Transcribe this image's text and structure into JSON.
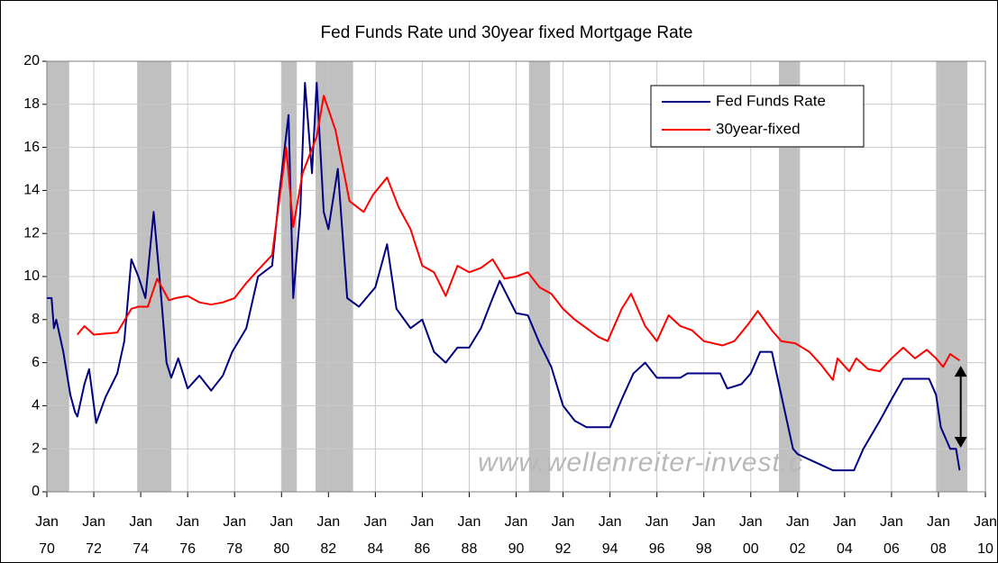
{
  "chart_data": {
    "type": "line",
    "title": "Fed Funds Rate und 30year fixed Mortgage Rate",
    "watermark": "www.wellenreiter-invest.c",
    "xlim": [
      1970,
      2010
    ],
    "ylim": [
      0,
      20
    ],
    "yticks": [
      0,
      2,
      4,
      6,
      8,
      10,
      12,
      14,
      16,
      18,
      20
    ],
    "xticks": [
      {
        "value": 1970,
        "label": "Jan 70"
      },
      {
        "value": 1972,
        "label": "Jan 72"
      },
      {
        "value": 1974,
        "label": "Jan 74"
      },
      {
        "value": 1976,
        "label": "Jan 76"
      },
      {
        "value": 1978,
        "label": "Jan 78"
      },
      {
        "value": 1980,
        "label": "Jan 80"
      },
      {
        "value": 1982,
        "label": "Jan 82"
      },
      {
        "value": 1984,
        "label": "Jan 84"
      },
      {
        "value": 1986,
        "label": "Jan 86"
      },
      {
        "value": 1988,
        "label": "Jan 88"
      },
      {
        "value": 1990,
        "label": "Jan 90"
      },
      {
        "value": 1992,
        "label": "Jan 92"
      },
      {
        "value": 1994,
        "label": "Jan 94"
      },
      {
        "value": 1996,
        "label": "Jan 96"
      },
      {
        "value": 1998,
        "label": "Jan 98"
      },
      {
        "value": 2000,
        "label": "Jan 00"
      },
      {
        "value": 2002,
        "label": "Jan 02"
      },
      {
        "value": 2004,
        "label": "Jan 04"
      },
      {
        "value": 2006,
        "label": "Jan 06"
      },
      {
        "value": 2008,
        "label": "Jan 08"
      },
      {
        "value": 2010,
        "label": "Jan 10"
      }
    ],
    "grid": true,
    "legend": "upper right",
    "shaded_ranges": [
      [
        1970,
        1970.95
      ],
      [
        1973.85,
        1975.3
      ],
      [
        1980,
        1980.65
      ],
      [
        1981.45,
        1983.05
      ],
      [
        1990.55,
        1991.45
      ],
      [
        2001.2,
        2002.1
      ],
      [
        2007.9,
        2009.4
      ]
    ],
    "shade_color": "#c0c0c0",
    "arrow": {
      "x": 2008.95,
      "from": 5.85,
      "to": 2.05,
      "color": "#000000"
    },
    "series": [
      {
        "name": "Fed Funds Rate",
        "color": "#000080",
        "x": [
          1970.0,
          1970.2,
          1970.3,
          1970.4,
          1970.7,
          1971.0,
          1971.2,
          1971.3,
          1971.6,
          1971.8,
          1972.1,
          1972.5,
          1973.0,
          1973.3,
          1973.6,
          1973.9,
          1974.2,
          1974.55,
          1974.8,
          1975.1,
          1975.3,
          1975.6,
          1976.0,
          1976.5,
          1977.0,
          1977.5,
          1977.9,
          1978.5,
          1979.0,
          1979.6,
          1979.9,
          1980.3,
          1980.5,
          1980.8,
          1981.0,
          1981.3,
          1981.5,
          1981.8,
          1982.0,
          1982.4,
          1982.8,
          1983.3,
          1984.0,
          1984.5,
          1984.9,
          1985.5,
          1986.0,
          1986.5,
          1987.0,
          1987.5,
          1988.0,
          1988.5,
          1989.0,
          1989.3,
          1990.0,
          1990.5,
          1991.0,
          1991.5,
          1992.0,
          1992.5,
          1993.0,
          1994.0,
          1994.5,
          1995.0,
          1995.5,
          1996.0,
          1997.0,
          1997.3,
          1998.7,
          1999.0,
          1999.6,
          2000.0,
          2000.4,
          2000.9,
          2001.3,
          2001.8,
          2002.0,
          2002.9,
          2003.5,
          2004.4,
          2004.8,
          2005.5,
          2006.0,
          2006.5,
          2007.6,
          2007.9,
          2008.1,
          2008.5,
          2008.75,
          2008.9
        ],
        "values": [
          9.0,
          9.0,
          7.6,
          8.0,
          6.5,
          4.5,
          3.7,
          3.5,
          5.0,
          5.7,
          3.2,
          4.4,
          5.5,
          7.0,
          10.8,
          10.0,
          9.0,
          13.0,
          10.0,
          6.0,
          5.3,
          6.2,
          4.8,
          5.4,
          4.7,
          5.4,
          6.5,
          7.6,
          10.0,
          10.5,
          13.8,
          17.5,
          9.0,
          13.0,
          19.0,
          14.8,
          19.0,
          13.0,
          12.2,
          15.0,
          9.0,
          8.6,
          9.5,
          11.5,
          8.5,
          7.6,
          8.0,
          6.5,
          6.0,
          6.7,
          6.7,
          7.6,
          9.0,
          9.8,
          8.3,
          8.2,
          6.9,
          5.8,
          4.0,
          3.3,
          3.0,
          3.0,
          4.3,
          5.5,
          6.0,
          5.3,
          5.3,
          5.5,
          5.5,
          4.8,
          5.0,
          5.5,
          6.5,
          6.5,
          4.5,
          2.0,
          1.75,
          1.3,
          1.0,
          1.0,
          2.0,
          3.3,
          4.3,
          5.25,
          5.25,
          4.5,
          3.0,
          2.0,
          2.0,
          1.0
        ]
      },
      {
        "name": "30year-fixed",
        "color": "#ff0000",
        "x": [
          1971.3,
          1971.6,
          1972.0,
          1973.0,
          1973.6,
          1973.9,
          1974.3,
          1974.7,
          1975.2,
          1975.5,
          1976.0,
          1976.5,
          1977.0,
          1977.5,
          1978.0,
          1978.5,
          1979.0,
          1979.6,
          1980.2,
          1980.5,
          1980.9,
          1981.5,
          1981.8,
          1982.3,
          1982.9,
          1983.5,
          1983.9,
          1984.5,
          1985.0,
          1985.5,
          1986.0,
          1986.5,
          1987.0,
          1987.5,
          1988.0,
          1988.5,
          1989.0,
          1989.5,
          1990.0,
          1990.5,
          1991.0,
          1991.5,
          1992.0,
          1992.5,
          1993.0,
          1993.5,
          1993.9,
          1994.5,
          1994.9,
          1995.5,
          1996.0,
          1996.5,
          1997.0,
          1997.5,
          1998.0,
          1998.8,
          1999.3,
          1999.9,
          2000.3,
          2000.9,
          2001.3,
          2001.9,
          2002.5,
          2003.0,
          2003.5,
          2003.7,
          2004.2,
          2004.5,
          2005.0,
          2005.5,
          2006.0,
          2006.5,
          2007.0,
          2007.5,
          2007.9,
          2008.2,
          2008.5,
          2008.9
        ],
        "values": [
          7.3,
          7.7,
          7.3,
          7.4,
          8.5,
          8.6,
          8.6,
          9.9,
          8.9,
          9.0,
          9.1,
          8.8,
          8.7,
          8.8,
          9.0,
          9.7,
          10.3,
          11.0,
          16.0,
          12.3,
          14.8,
          16.5,
          18.4,
          16.8,
          13.5,
          13.0,
          13.8,
          14.6,
          13.2,
          12.2,
          10.5,
          10.2,
          9.1,
          10.5,
          10.2,
          10.4,
          10.8,
          9.9,
          10.0,
          10.2,
          9.5,
          9.2,
          8.5,
          8.0,
          7.6,
          7.2,
          7.0,
          8.5,
          9.2,
          7.7,
          7.0,
          8.2,
          7.7,
          7.5,
          7.0,
          6.8,
          7.0,
          7.8,
          8.4,
          7.5,
          7.0,
          6.9,
          6.5,
          5.9,
          5.2,
          6.2,
          5.6,
          6.2,
          5.7,
          5.6,
          6.2,
          6.7,
          6.2,
          6.6,
          6.2,
          5.8,
          6.4,
          6.1
        ]
      }
    ]
  }
}
